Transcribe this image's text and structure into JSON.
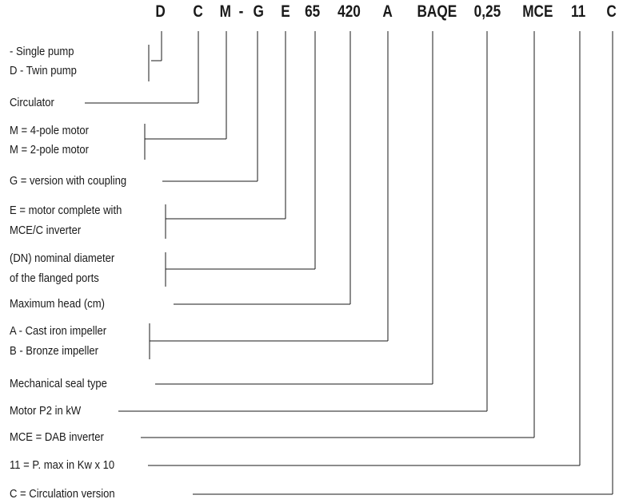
{
  "code": {
    "d": "D",
    "c": "C",
    "m": "M",
    "dash": "-",
    "g": "G",
    "e": "E",
    "dn": "65",
    "head": "420",
    "impeller": "A",
    "seal": "BAQE",
    "power": "0,25",
    "mce": "MCE",
    "pmax": "11",
    "circ": "C"
  },
  "labels": {
    "single_pump": "- Single pump",
    "twin_pump": "D - Twin pump",
    "circulator": "Circulator",
    "motor_4pole": "M = 4-pole motor",
    "motor_2pole": "M = 2-pole motor",
    "coupling": "G = version with coupling",
    "motor_complete_1": "E = motor complete with",
    "motor_complete_2": "MCE/C inverter",
    "nominal_diameter_1": "(DN) nominal diameter",
    "nominal_diameter_2": "of the flanged ports",
    "max_head": "Maximum head (cm)",
    "cast_iron": "A - Cast iron impeller",
    "bronze": "B - Bronze impeller",
    "seal_type": "Mechanical seal type",
    "motor_p2": "Motor P2 in kW",
    "dab_inverter": "MCE = DAB inverter",
    "pmax_desc": "11 = P. max in Kw x 10",
    "circulation": "C = Circulation version"
  }
}
